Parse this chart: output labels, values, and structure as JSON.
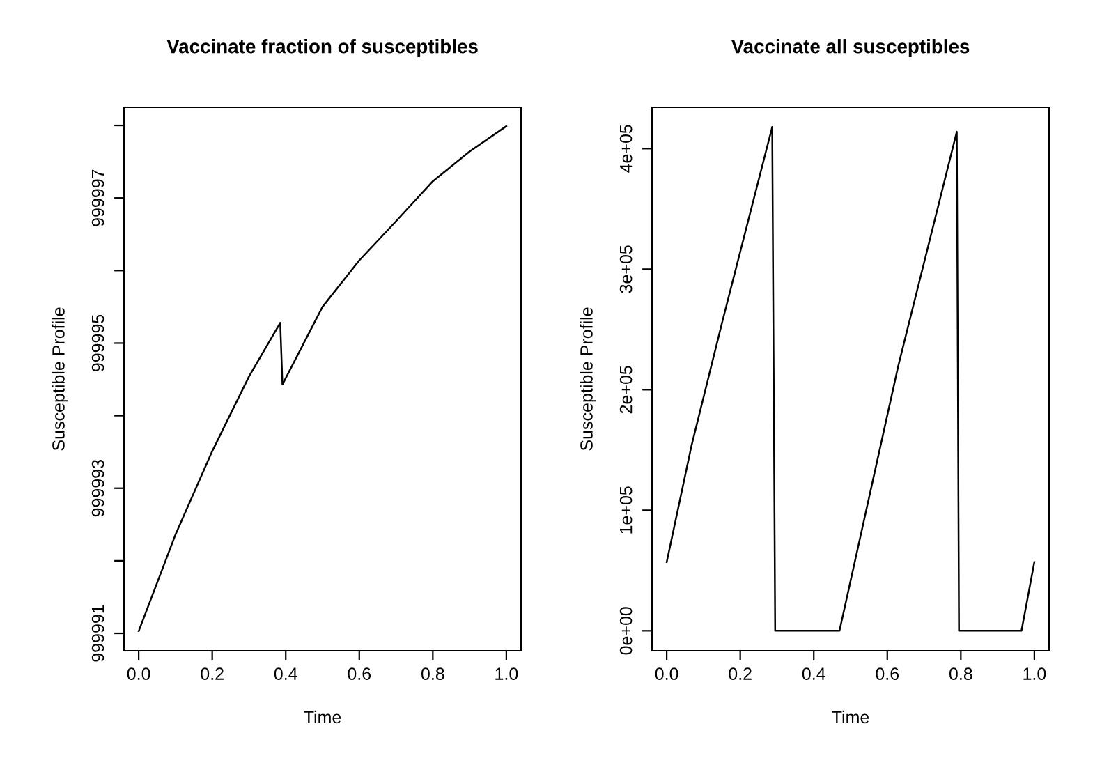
{
  "chart_data": [
    {
      "type": "line",
      "title": "Vaccinate fraction of susceptibles",
      "xlabel": "Time",
      "ylabel": "Susceptible Profile",
      "x": [
        0,
        0.1,
        0.2,
        0.3,
        0.385,
        0.391,
        0.5,
        0.6,
        0.7,
        0.8,
        0.9,
        1.0
      ],
      "series": [
        {
          "color": "#000000",
          "values": [
            999991.03,
            999992.36,
            999993.51,
            999994.54,
            999995.28,
            999994.43,
            999995.5,
            999996.14,
            999996.68,
            999997.23,
            999997.64,
            999997.99
          ]
        }
      ],
      "xlim": [
        -0.04,
        1.04
      ],
      "ylim": [
        999990.76,
        999998.25
      ],
      "xticks": [
        {
          "value": 0,
          "label": "0.0"
        },
        {
          "value": 0.2,
          "label": "0.2"
        },
        {
          "value": 0.4,
          "label": "0.4"
        },
        {
          "value": 0.6,
          "label": "0.6"
        },
        {
          "value": 0.8,
          "label": "0.8"
        },
        {
          "value": 1.0,
          "label": "1.0"
        }
      ],
      "yticks": [
        999991,
        {
          "value": 999992,
          "label": null
        },
        999993,
        {
          "value": 999994,
          "label": null
        },
        999995,
        {
          "value": 999996,
          "label": null
        },
        999997,
        {
          "value": 999998,
          "label": null
        }
      ],
      "grid": false,
      "legend": false
    },
    {
      "type": "line",
      "title": "Vaccinate all susceptibles",
      "xlabel": "Time",
      "ylabel": "Susceptible Profile",
      "x": [
        0,
        0.067,
        0.15,
        0.287,
        0.295,
        0.47,
        0.63,
        0.789,
        0.795,
        0.965,
        1.0
      ],
      "series": [
        {
          "color": "#000000",
          "values": [
            57000,
            153000,
            255000,
            418000,
            0,
            0,
            220000,
            414000,
            0,
            0,
            57000
          ]
        }
      ],
      "xlim": [
        -0.04,
        1.04
      ],
      "ylim": [
        -16570,
        434300
      ],
      "xticks": [
        {
          "value": 0,
          "label": "0.0"
        },
        {
          "value": 0.2,
          "label": "0.2"
        },
        {
          "value": 0.4,
          "label": "0.4"
        },
        {
          "value": 0.6,
          "label": "0.6"
        },
        {
          "value": 0.8,
          "label": "0.8"
        },
        {
          "value": 1.0,
          "label": "1.0"
        }
      ],
      "yticks": [
        {
          "value": 0,
          "label": "0e+00"
        },
        {
          "value": 100000,
          "label": "1e+05"
        },
        {
          "value": 200000,
          "label": "2e+05"
        },
        {
          "value": 300000,
          "label": "3e+05"
        },
        {
          "value": 400000,
          "label": "4e+05"
        }
      ],
      "grid": false,
      "legend": false
    }
  ]
}
